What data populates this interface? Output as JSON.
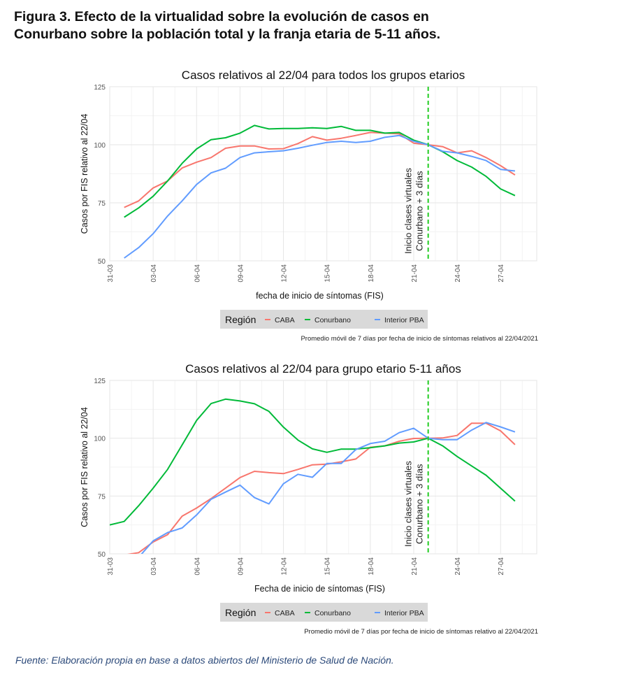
{
  "figure": {
    "title_line1": "Figura 3. Efecto de la virtualidad sobre la evolución de casos en",
    "title_line2": "Conurbano sobre la población total y la franja etaria de 5-11 años.",
    "source": "Fuente: Elaboración propia en base a datos abiertos del Ministerio de Salud de Nación."
  },
  "colors": {
    "CABA": "#f8766d",
    "Conurbano": "#00ba38",
    "Interior PBA": "#619cff",
    "vline": "#22cc22"
  },
  "chart_data": [
    {
      "type": "line",
      "title": "Casos relativos al 22/04 para todos los grupos etarios",
      "xlabel": "fecha de inicio de síntomas (FIS)",
      "ylabel": "Casos por FIS relativo al 22/04",
      "ylim": [
        50,
        125
      ],
      "yticks": [
        50,
        75,
        100,
        125
      ],
      "xlim_days": [
        0,
        29.5
      ],
      "xticks": [
        {
          "day": 0,
          "label": "31-03"
        },
        {
          "day": 3,
          "label": "03-04"
        },
        {
          "day": 6,
          "label": "06-04"
        },
        {
          "day": 9,
          "label": "09-04"
        },
        {
          "day": 12,
          "label": "12-04"
        },
        {
          "day": 15,
          "label": "15-04"
        },
        {
          "day": 18,
          "label": "18-04"
        },
        {
          "day": 21,
          "label": "21-04"
        },
        {
          "day": 24,
          "label": "24-04"
        },
        {
          "day": 27,
          "label": "27-04"
        }
      ],
      "grid": true,
      "vline": {
        "day": 22,
        "label_line1": "Inicio clases virtuales",
        "label_line2": "Conurbano + 3 días"
      },
      "legend": {
        "title": "Región",
        "placement": "bottom"
      },
      "note": "Promedio móvil de 7 días por fecha de inicio de síntomas relativos al 22/04/2021",
      "series": [
        {
          "name": "CABA",
          "start_day": 1,
          "values": [
            73,
            75.8,
            81.4,
            84.4,
            90,
            92.5,
            94.5,
            98.5,
            99.5,
            99.5,
            98.2,
            98.3,
            100.5,
            103.5,
            102,
            102.8,
            104,
            105.3,
            105,
            104.7,
            100.7,
            100,
            99.2,
            96.5,
            97.4,
            94.5,
            91,
            87
          ]
        },
        {
          "name": "Conurbano",
          "start_day": 1,
          "values": [
            68.8,
            72.8,
            77.8,
            84.4,
            92,
            98.2,
            102.2,
            103,
            105,
            108.3,
            106.8,
            107,
            107,
            107.3,
            107,
            107.9,
            106.2,
            106.2,
            105,
            105.3,
            102,
            100,
            97,
            93.2,
            90.4,
            86.4,
            81,
            78.1
          ]
        },
        {
          "name": "Interior PBA",
          "start_day": 1,
          "values": [
            51.2,
            55.7,
            61.7,
            69.3,
            75.8,
            82.9,
            87.9,
            89.9,
            94.5,
            96.5,
            97,
            97.4,
            98.5,
            99.8,
            101,
            101.5,
            101,
            101.5,
            103.2,
            104,
            101.5,
            100,
            97.2,
            96.5,
            95,
            93.2,
            89.4,
            88.7
          ]
        }
      ]
    },
    {
      "type": "line",
      "title": "Casos relativos al 22/04 para grupo etario 5-11 años",
      "xlabel": "Fecha de inicio de síntomas (FIS)",
      "ylabel": "Casos por FIS relativo al 22/04",
      "ylim": [
        50,
        125
      ],
      "yticks": [
        50,
        75,
        100,
        125
      ],
      "xlim_days": [
        0,
        29.5
      ],
      "xticks": [
        {
          "day": 0,
          "label": "31-03"
        },
        {
          "day": 3,
          "label": "03-04"
        },
        {
          "day": 6,
          "label": "06-04"
        },
        {
          "day": 9,
          "label": "09-04"
        },
        {
          "day": 12,
          "label": "12-04"
        },
        {
          "day": 15,
          "label": "15-04"
        },
        {
          "day": 18,
          "label": "18-04"
        },
        {
          "day": 21,
          "label": "21-04"
        },
        {
          "day": 24,
          "label": "24-04"
        },
        {
          "day": 27,
          "label": "27-04"
        }
      ],
      "grid": true,
      "vline": {
        "day": 22,
        "label_line1": "Inicio clases virtuales",
        "label_line2": "Conurbano + 3 días"
      },
      "legend": {
        "title": "Región",
        "placement": "bottom"
      },
      "note": "Promedio móvil de 7 días por fecha de inicio de síntomas relativo al 22/04/2021",
      "series": [
        {
          "name": "CABA",
          "start_day": 1,
          "values": [
            49.5,
            50.5,
            55.1,
            58.3,
            66.3,
            69.8,
            73.9,
            78.4,
            83,
            85.7,
            85.1,
            84.7,
            86.5,
            88.5,
            88.8,
            89.8,
            91,
            96.1,
            96.7,
            98.7,
            99.9,
            100,
            100.1,
            101.2,
            106.5,
            106.5,
            103.2,
            97.2
          ]
        },
        {
          "name": "Conurbano",
          "start_day": 0,
          "values": [
            62.5,
            64,
            70.8,
            78.4,
            86.5,
            97.1,
            107.7,
            115,
            116.9,
            116.1,
            114.9,
            111.6,
            104.8,
            99.2,
            95.4,
            93.9,
            95.3,
            95.3,
            95.9,
            96.7,
            97.9,
            98.4,
            100,
            96.7,
            92.1,
            88,
            84,
            78.4,
            72.8
          ]
        },
        {
          "name": "Interior PBA",
          "start_day": 2,
          "values": [
            48.5,
            55.6,
            59.2,
            61.2,
            66.8,
            73.6,
            76.7,
            79.7,
            74.3,
            71.6,
            80.3,
            84.4,
            83.1,
            89.1,
            89.1,
            95.1,
            97.7,
            98.7,
            102.4,
            104.3,
            100,
            99.4,
            99.4,
            103.5,
            106.8,
            104.9,
            102.7
          ]
        }
      ]
    }
  ]
}
